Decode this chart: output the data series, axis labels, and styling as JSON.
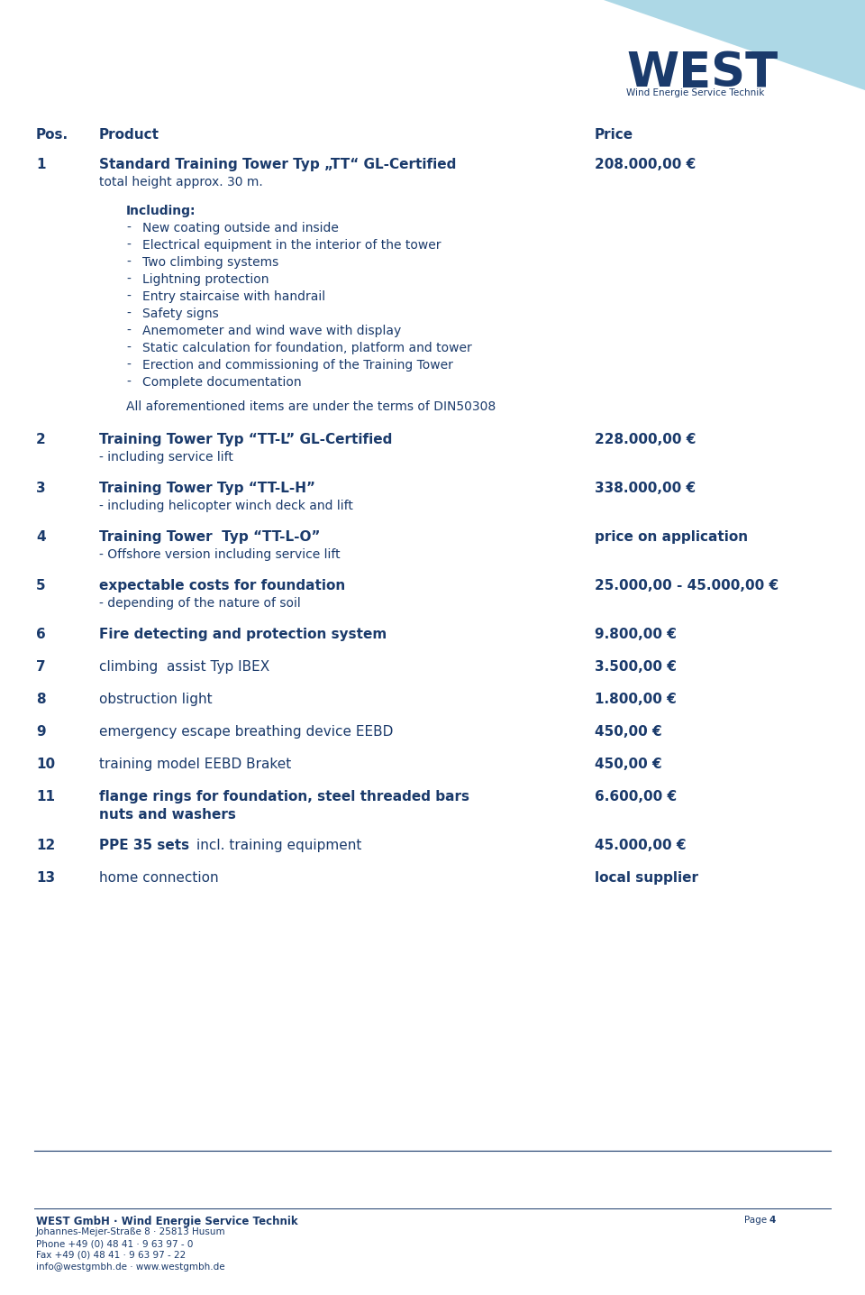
{
  "bg_color": "#ffffff",
  "hc": "#1a3a6b",
  "logo_text": "WEST",
  "logo_sub": "Wind Energie Service Technik",
  "footer_bold": "WEST GmbH · Wind Energie Service Technik",
  "footer_lines": [
    "Johannes-Mejer-Straße 8 · 25813 Husum",
    "Phone +49 (0) 48 41 · 9 63 97 - 0",
    "Fax +49 (0) 48 41 · 9 63 97 - 22",
    "info@westgmbh.de · www.westgmbh.de"
  ],
  "page_label": "Page 4"
}
